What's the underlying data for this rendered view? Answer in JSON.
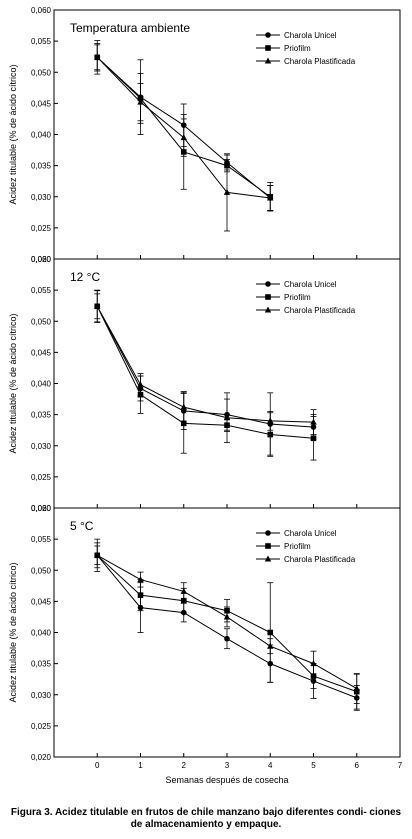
{
  "chart_data": [
    {
      "type": "line",
      "title": "Temperatura ambiente",
      "ylabel": "Acidez titulable (% de ácido cítrico)",
      "xlabel": "",
      "ylim": [
        0.02,
        0.06
      ],
      "xlim": [
        -1,
        7
      ],
      "yticks": [
        "0,020",
        "0,025",
        "0,030",
        "0,035",
        "0,040",
        "0,045",
        "0,050",
        "0,055",
        "0,060"
      ],
      "xticks": [],
      "legend": "top-right",
      "series": [
        {
          "name": "Charola Unicel",
          "marker": "circle",
          "x": [
            0,
            1,
            2,
            3,
            4
          ],
          "y": [
            0.0524,
            0.046,
            0.0415,
            0.0355,
            0.0298
          ],
          "err": [
            0.0027,
            0.006,
            0.0034,
            0.0012,
            0.002
          ]
        },
        {
          "name": "Priofilm",
          "marker": "square",
          "x": [
            0,
            1,
            2,
            3,
            4
          ],
          "y": [
            0.0524,
            0.0458,
            0.0372,
            0.035,
            0.03
          ],
          "err": [
            0.0022,
            0.004,
            0.006,
            0.001,
            0.0023
          ]
        },
        {
          "name": "Charola Plastificada",
          "marker": "triangle",
          "x": [
            0,
            1,
            2,
            3,
            4
          ],
          "y": [
            0.0524,
            0.0452,
            0.0395,
            0.0307,
            0.0298
          ],
          "err": [
            0.002,
            0.003,
            0.003,
            0.0062,
            0.002
          ]
        }
      ]
    },
    {
      "type": "line",
      "title": "12 °C",
      "ylabel": "Acidez titulable (% de ácido cítrico)",
      "xlabel": "",
      "ylim": [
        0.02,
        0.06
      ],
      "xlim": [
        -1,
        7
      ],
      "yticks": [
        "0,020",
        "0,025",
        "0,030",
        "0,035",
        "0,040",
        "0,045",
        "0,050",
        "0,055",
        "0,060"
      ],
      "xticks": [],
      "legend": "top-right",
      "series": [
        {
          "name": "Charola Unicel",
          "marker": "circle",
          "x": [
            0,
            1,
            2,
            3,
            4,
            5
          ],
          "y": [
            0.0524,
            0.0392,
            0.0356,
            0.035,
            0.0335,
            0.033
          ],
          "err": [
            0.0025,
            0.002,
            0.003,
            0.0025,
            0.005,
            0.002
          ]
        },
        {
          "name": "Priofilm",
          "marker": "square",
          "x": [
            0,
            1,
            2,
            3,
            4,
            5
          ],
          "y": [
            0.0524,
            0.0382,
            0.0336,
            0.0333,
            0.0318,
            0.0312
          ],
          "err": [
            0.0026,
            0.003,
            0.0048,
            0.001,
            0.0035,
            0.0035
          ]
        },
        {
          "name": "Charola Plastificada",
          "marker": "triangle",
          "x": [
            0,
            1,
            2,
            3,
            4,
            5
          ],
          "y": [
            0.0524,
            0.0398,
            0.0362,
            0.0345,
            0.034,
            0.0338
          ],
          "err": [
            0.002,
            0.0018,
            0.0025,
            0.004,
            0.0015,
            0.002
          ]
        }
      ]
    },
    {
      "type": "line",
      "title": "5 °C",
      "ylabel": "Acidez titulable (% de ácido cítrico)",
      "xlabel": "Semanas después de cosecha",
      "ylim": [
        0.02,
        0.06
      ],
      "xlim": [
        -1,
        7
      ],
      "yticks": [
        "0,020",
        "0,025",
        "0,030",
        "0,035",
        "0,040",
        "0,045",
        "0,050",
        "0,055",
        "0,060"
      ],
      "xticks": [
        "0",
        "1",
        "2",
        "3",
        "4",
        "5",
        "6",
        "7"
      ],
      "legend": "top-right",
      "series": [
        {
          "name": "Charola Unicel",
          "marker": "circle",
          "x": [
            0,
            1,
            2,
            3,
            4,
            5,
            6
          ],
          "y": [
            0.0524,
            0.044,
            0.0432,
            0.039,
            0.035,
            0.0322,
            0.0295
          ],
          "err": [
            0.0026,
            0.004,
            0.0015,
            0.0016,
            0.003,
            0.0028,
            0.002
          ]
        },
        {
          "name": "Priofilm",
          "marker": "square",
          "x": [
            0,
            1,
            2,
            3,
            4,
            5,
            6
          ],
          "y": [
            0.0524,
            0.046,
            0.0451,
            0.0435,
            0.04,
            0.033,
            0.0305
          ],
          "err": [
            0.002,
            0.0025,
            0.002,
            0.0018,
            0.008,
            0.002,
            0.0028
          ]
        },
        {
          "name": "Charola Plastificada",
          "marker": "triangle",
          "x": [
            0,
            1,
            2,
            3,
            4,
            5,
            6
          ],
          "y": [
            0.0524,
            0.0485,
            0.0466,
            0.0425,
            0.0378,
            0.035,
            0.031
          ],
          "err": [
            0.0015,
            0.0012,
            0.0014,
            0.0016,
            0.0012,
            0.002,
            0.0024
          ]
        }
      ]
    }
  ],
  "caption": "Figura 3. Acidez titulable en frutos de chile manzano bajo diferentes condi- ciones de almacenamiento y empaque."
}
